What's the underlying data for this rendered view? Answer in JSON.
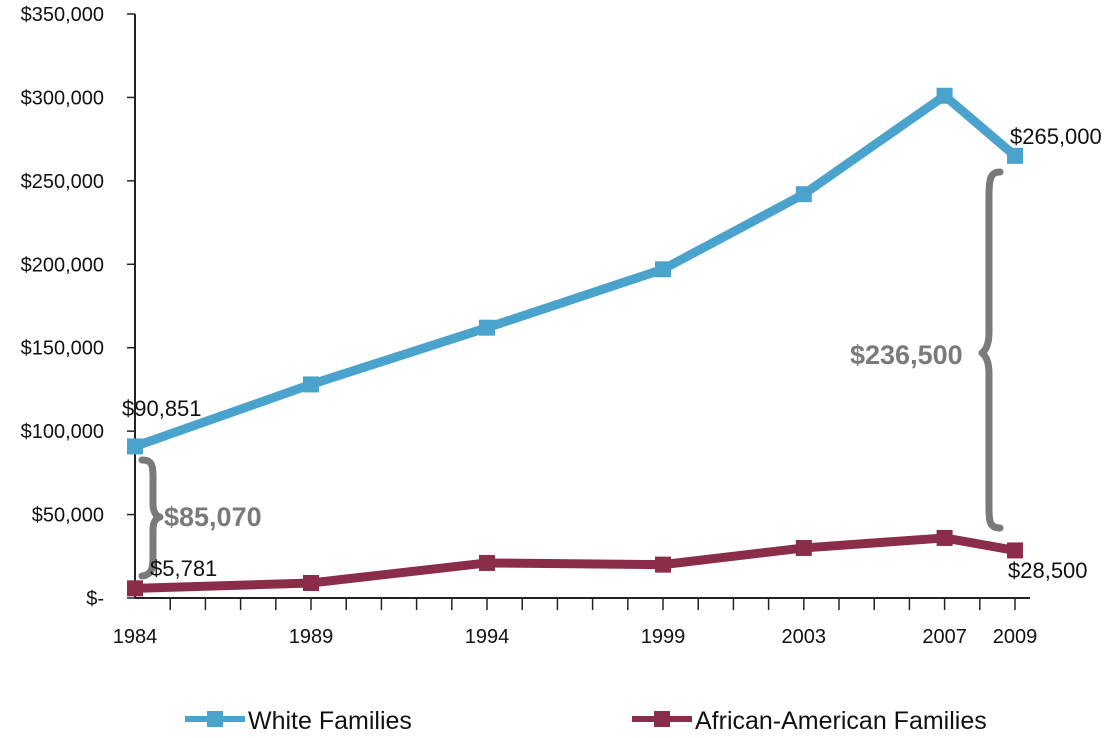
{
  "chart_data": {
    "type": "line",
    "x": [
      1984,
      1989,
      1994,
      1999,
      2003,
      2007,
      2009
    ],
    "x_tick_labels": [
      "1984",
      "1989",
      "1994",
      "1999",
      "2003",
      "2007",
      "2009"
    ],
    "ylim": [
      0,
      350000
    ],
    "y_tick_labels": [
      "$-",
      "$50,000",
      "$100,000",
      "$150,000",
      "$200,000",
      "$250,000",
      "$300,000",
      "$350,000"
    ],
    "series": [
      {
        "name": "White Families",
        "color": "#4aa3cc",
        "values": [
          90851,
          128000,
          162000,
          197000,
          242000,
          301000,
          265000
        ]
      },
      {
        "name": "African-American Families",
        "color": "#8b2c48",
        "values": [
          5781,
          9000,
          21000,
          20000,
          30000,
          36000,
          28500
        ]
      }
    ],
    "annotations": {
      "white_start": "$90,851",
      "white_end": "$265,000",
      "black_start": "$5,781",
      "black_end": "$28,500",
      "gap_1984": "$85,070",
      "gap_2009": "$236,500"
    },
    "grid": false,
    "legend_position": "bottom"
  }
}
